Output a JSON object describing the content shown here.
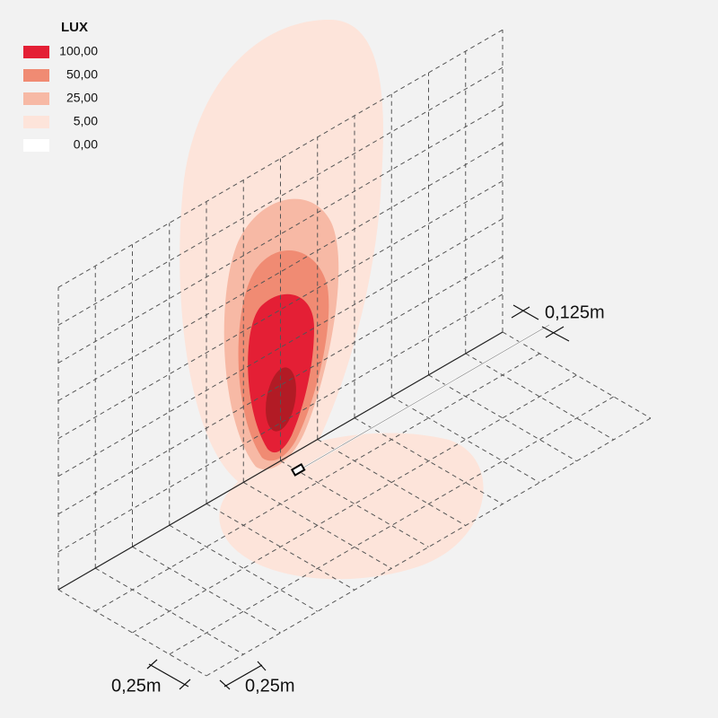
{
  "legend": {
    "title": "LUX",
    "items": [
      {
        "label": "100,00",
        "color": "#e41f35"
      },
      {
        "label": "50,00",
        "color": "#f08b73"
      },
      {
        "label": "25,00",
        "color": "#f7b9a5"
      },
      {
        "label": "5,00",
        "color": "#fde4da"
      },
      {
        "label": "0,00",
        "color": "#ffffff"
      }
    ]
  },
  "dimensions": {
    "height": "0,125m",
    "width": "0,25m",
    "depth": "0,25m"
  }
}
